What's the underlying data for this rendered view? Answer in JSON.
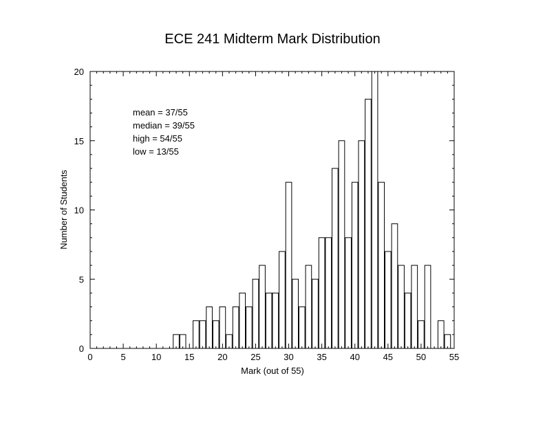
{
  "chart_data": {
    "type": "bar",
    "title": "ECE 241 Midterm Mark Distribution",
    "xlabel": "Mark (out of 55)",
    "ylabel": "Number of Students",
    "xlim": [
      0,
      55
    ],
    "ylim": [
      0,
      20
    ],
    "xticks": [
      0,
      5,
      10,
      15,
      20,
      25,
      30,
      35,
      40,
      45,
      50,
      55
    ],
    "yticks": [
      0,
      5,
      10,
      15,
      20
    ],
    "grid": false,
    "legend": "none",
    "annotations": [
      "mean = 37/55",
      "median = 39/55",
      "high = 54/55",
      "low = 13/55"
    ],
    "x": [
      13,
      14,
      16,
      17,
      18,
      19,
      20,
      21,
      22,
      23,
      24,
      25,
      26,
      27,
      28,
      29,
      30,
      31,
      32,
      33,
      34,
      35,
      36,
      37,
      38,
      39,
      40,
      41,
      42,
      43,
      44,
      45,
      46,
      47,
      48,
      49,
      50,
      51,
      53,
      54
    ],
    "values": [
      1,
      1,
      2,
      2,
      3,
      2,
      3,
      1,
      3,
      4,
      3,
      5,
      6,
      4,
      4,
      7,
      12,
      5,
      3,
      6,
      5,
      8,
      8,
      13,
      15,
      8,
      12,
      15,
      18,
      20,
      12,
      7,
      9,
      6,
      4,
      6,
      2,
      6,
      2,
      1
    ],
    "colors": {
      "bar_fill": "#ffffff",
      "bar_stroke": "#000000",
      "axis": "#000000"
    }
  }
}
